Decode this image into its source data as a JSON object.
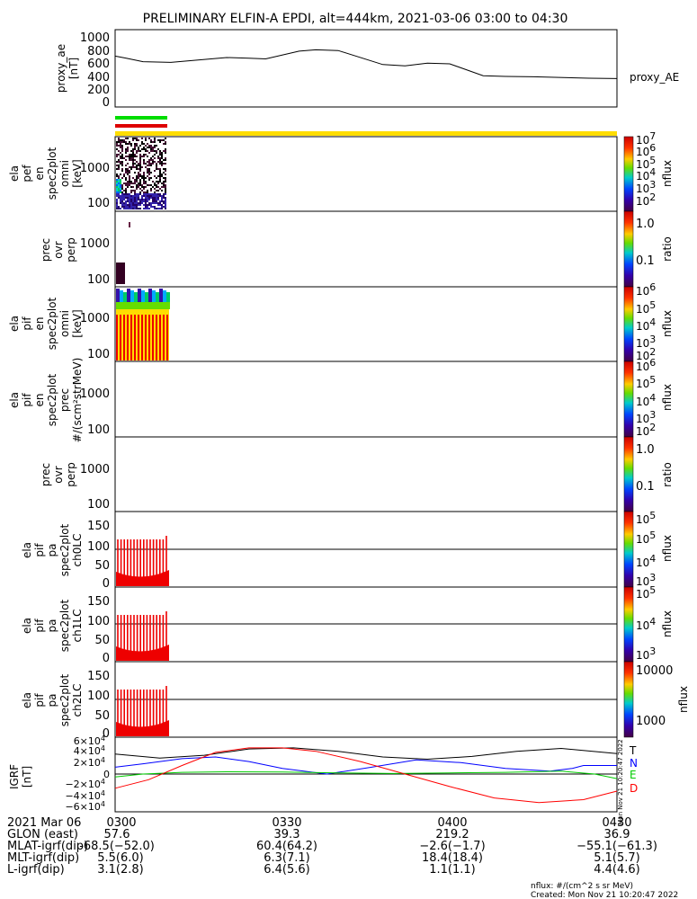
{
  "title": "PRELIMINARY ELFIN-A EPDI, alt=444km, 2021-03-06 03:00 to 04:30",
  "colors": {
    "black": "#000000",
    "blue": "#0000ff",
    "green": "#00cc00",
    "red": "#ff0000",
    "yellow": "#ffdd00",
    "purple": "#440066"
  },
  "panels": {
    "ae": {
      "ylabel": [
        "proxy_ae",
        "[nT]"
      ],
      "yticks": [
        "0",
        "200",
        "400",
        "600",
        "800",
        "1000"
      ],
      "right_label": "proxy_AE"
    },
    "pef": {
      "ylabel": [
        "ela",
        "pef",
        "en",
        "spec2plot",
        "omni",
        "[keV]"
      ],
      "yticks": [
        "100",
        "1000"
      ],
      "cb_label": "nflux",
      "cb_ticks": [
        "10",
        "10",
        "10",
        "10",
        "10",
        "10"
      ],
      "cb_exps": [
        "7",
        "6",
        "5",
        "4",
        "3",
        "2"
      ]
    },
    "prec1": {
      "ylabel": [
        "prec",
        "ovr",
        "perp"
      ],
      "yticks": [
        "100",
        "1000"
      ],
      "cb_label": "ratio",
      "cb_ticks": [
        "1.0",
        "0.1"
      ]
    },
    "pif": {
      "ylabel": [
        "ela",
        "pif",
        "en",
        "spec2plot",
        "omni",
        "[keV]"
      ],
      "yticks": [
        "100",
        "1000"
      ],
      "cb_label": "nflux",
      "cb_ticks": [
        "10",
        "10",
        "10",
        "10",
        "10"
      ],
      "cb_exps": [
        "6",
        "5",
        "4",
        "3",
        "2"
      ]
    },
    "pifprec": {
      "ylabel": [
        "ela",
        "pif",
        "en",
        "spec2plot",
        "prec",
        "#/(scm²strMeV)"
      ],
      "yticks": [
        "100",
        "1000"
      ],
      "cb_label": "nflux",
      "cb_ticks": [
        "10",
        "10",
        "10",
        "10",
        "10"
      ],
      "cb_exps": [
        "6",
        "5",
        "4",
        "3",
        "2"
      ]
    },
    "prec2": {
      "ylabel": [
        "prec",
        "ovr",
        "perp"
      ],
      "yticks": [
        "100",
        "1000"
      ],
      "cb_label": "ratio",
      "cb_ticks": [
        "1.0",
        "0.1"
      ]
    },
    "pa0": {
      "ylabel": [
        "ela",
        "pif",
        "pa",
        "spec2plot",
        "ch0LC"
      ],
      "yticks": [
        "0",
        "50",
        "100",
        "150"
      ],
      "cb_label": "nflux",
      "cb_ticks": [
        "10",
        "10",
        "10",
        "10"
      ],
      "cb_exps": [
        "5",
        "5",
        "4",
        "3"
      ]
    },
    "pa1": {
      "ylabel": [
        "ela",
        "pif",
        "pa",
        "spec2plot",
        "ch1LC"
      ],
      "yticks": [
        "0",
        "50",
        "100",
        "150"
      ],
      "cb_label": "nflux",
      "cb_ticks": [
        "10",
        "10",
        "10"
      ],
      "cb_exps": [
        "5",
        "4",
        "3"
      ]
    },
    "pa2": {
      "ylabel": [
        "ela",
        "pif",
        "pa",
        "spec2plot",
        "ch2LC"
      ],
      "yticks": [
        "0",
        "50",
        "100",
        "150"
      ],
      "cb_label": "nflux",
      "cb_ticks": [
        "10000",
        "1000"
      ]
    },
    "igrf": {
      "ylabel": [
        "IGRF",
        "[nT]"
      ],
      "ytick_mant": [
        "−6×10",
        "−4×10",
        "−2×10",
        "0",
        "2×10",
        "4×10",
        "6×10"
      ],
      "ytick_exp": [
        "4",
        "4",
        "4",
        "",
        "4",
        "4",
        "4"
      ],
      "legend": [
        "T",
        "N",
        "E",
        "D"
      ],
      "side_note": "Mon Nov 21 10:20:47 2022"
    }
  },
  "footer": {
    "rows": [
      {
        "label": "2021 Mar 06",
        "values": [
          "0300",
          "0330",
          "0400",
          "0430"
        ]
      },
      {
        "label": "GLON (east)",
        "values": [
          "57.6",
          "39.3",
          "219.2",
          "36.9"
        ]
      },
      {
        "label": "MLAT-igrf(dip)",
        "values": [
          "-68.5(−52.0)",
          "60.4(64.2)",
          "−2.6(−1.7)",
          "−55.1(−61.3)"
        ]
      },
      {
        "label": "MLT-igrf(dip)",
        "values": [
          "5.5(6.0)",
          "6.3(7.1)",
          "18.4(18.4)",
          "5.1(5.7)"
        ]
      },
      {
        "label": "L-igrf(dip)",
        "values": [
          "3.1(2.8)",
          "6.4(5.6)",
          "1.1(1.1)",
          "4.4(4.6)"
        ]
      }
    ],
    "units_note": "nflux: #/(cm^2 s sr MeV)",
    "created": "Created: Mon Nov 21 10:20:47 2022"
  },
  "chart_data": [
    {
      "type": "line",
      "title": "PRELIMINARY ELFIN-A EPDI, alt=444km, 2021-03-06 03:00 to 04:30",
      "ylabel": "proxy_ae [nT]",
      "ylim": [
        0,
        1000
      ],
      "x_labels": [
        "0300",
        "0330",
        "0400",
        "0430"
      ],
      "series": [
        {
          "name": "proxy_AE",
          "x": [
            0,
            2,
            5,
            10,
            20,
            24,
            27,
            33,
            36,
            40,
            48,
            52,
            56,
            60,
            66,
            70,
            75,
            85,
            90
          ],
          "values": [
            700,
            670,
            620,
            610,
            680,
            670,
            660,
            770,
            790,
            780,
            580,
            560,
            600,
            590,
            420,
            410,
            405,
            385,
            380
          ]
        }
      ]
    },
    {
      "type": "line",
      "ylabel": "IGRF [nT]",
      "ylim": [
        -60000,
        60000
      ],
      "x_labels": [
        "0300",
        "0330",
        "0400",
        "0430"
      ],
      "series": [
        {
          "name": "T",
          "color": "#000000",
          "x": [
            0,
            8,
            16,
            24,
            32,
            40,
            48,
            56,
            64,
            72,
            80,
            90
          ],
          "values": [
            35000,
            28000,
            33000,
            44000,
            46000,
            40000,
            30000,
            26000,
            31000,
            40000,
            45000,
            36000
          ]
        },
        {
          "name": "N",
          "color": "#0000ff",
          "x": [
            0,
            5,
            12,
            18,
            24,
            30,
            38,
            46,
            54,
            62,
            70,
            78,
            82,
            84,
            90
          ],
          "values": [
            12000,
            18000,
            27000,
            30000,
            22000,
            10000,
            0,
            12000,
            25000,
            20000,
            10000,
            5000,
            10000,
            15000,
            15000
          ]
        },
        {
          "name": "E",
          "color": "#00cc00",
          "x": [
            0,
            5,
            12,
            20,
            30,
            40,
            50,
            60,
            70,
            80,
            86,
            90
          ],
          "values": [
            -5000,
            0,
            3000,
            4000,
            3500,
            2000,
            1000,
            2000,
            3000,
            5000,
            0,
            -8000
          ]
        },
        {
          "name": "D",
          "color": "#ff0000",
          "x": [
            0,
            6,
            12,
            18,
            24,
            30,
            36,
            44,
            52,
            60,
            68,
            76,
            84,
            90
          ],
          "values": [
            -25000,
            -10000,
            15000,
            38000,
            46000,
            46000,
            40000,
            22000,
            0,
            -22000,
            -42000,
            -50000,
            -45000,
            -30000
          ]
        }
      ]
    },
    {
      "type": "heatmap",
      "ylabel": "ela pef en spec2plot omni [keV]",
      "y_scale": "log",
      "y_ticks": [
        "100",
        "1000"
      ],
      "colorbar": {
        "label": "nflux",
        "ticks": [
          "10^7",
          "10^6",
          "10^5",
          "10^4",
          "10^3",
          "10^2"
        ]
      },
      "note": "data present only from ~0300 to ~0306"
    },
    {
      "type": "heatmap",
      "ylabel": "ela pif en spec2plot omni [keV]",
      "y_scale": "log",
      "y_ticks": [
        "100",
        "1000"
      ],
      "colorbar": {
        "label": "nflux",
        "ticks": [
          "10^6",
          "10^5",
          "10^4",
          "10^3",
          "10^2"
        ]
      }
    },
    {
      "type": "heatmap",
      "ylabel": "ela pif pa spec2plot ch0LC",
      "y_ticks": [
        "0",
        "50",
        "100",
        "150"
      ],
      "colorbar": {
        "label": "nflux",
        "ticks": [
          "10^5",
          "10^5",
          "10^4",
          "10^3"
        ]
      }
    }
  ]
}
